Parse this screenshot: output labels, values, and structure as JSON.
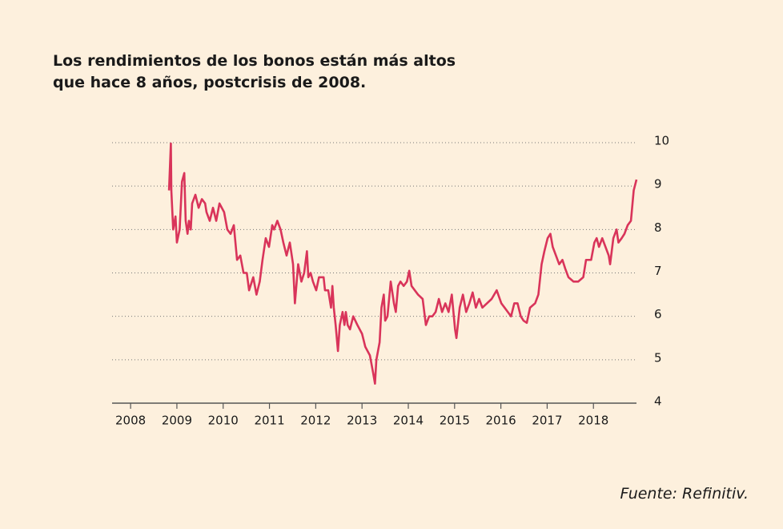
{
  "chart_data": {
    "type": "line",
    "title": [
      "Los rendimientos de los bonos están más altos",
      "que hace 8 años, postcrisis de 2008."
    ],
    "source": "Fuente: Refinitiv.",
    "color": "#d9345a",
    "grid": true,
    "x": [
      2008.83,
      2008.87,
      2008.88,
      2008.92,
      2008.97,
      2009.0,
      2009.06,
      2009.11,
      2009.16,
      2009.19,
      2009.23,
      2009.26,
      2009.3,
      2009.33,
      2009.4,
      2009.47,
      2009.54,
      2009.61,
      2009.64,
      2009.71,
      2009.78,
      2009.85,
      2009.92,
      2010.02,
      2010.09,
      2010.16,
      2010.23,
      2010.3,
      2010.37,
      2010.44,
      2010.51,
      2010.56,
      2010.65,
      2010.72,
      2010.79,
      2010.85,
      2010.92,
      2010.99,
      2011.06,
      2011.1,
      2011.17,
      2011.24,
      2011.3,
      2011.37,
      2011.44,
      2011.51,
      2011.55,
      2011.62,
      2011.69,
      2011.75,
      2011.81,
      2011.84,
      2011.89,
      2011.94,
      2012.01,
      2012.07,
      2012.17,
      2012.2,
      2012.27,
      2012.33,
      2012.36,
      2012.39,
      2012.43,
      2012.48,
      2012.52,
      2012.58,
      2012.62,
      2012.65,
      2012.69,
      2012.74,
      2012.81,
      2012.9,
      2013.0,
      2013.07,
      2013.17,
      2013.24,
      2013.28,
      2013.31,
      2013.38,
      2013.42,
      2013.47,
      2013.5,
      2013.55,
      2013.62,
      2013.69,
      2013.73,
      2013.78,
      2013.83,
      2013.9,
      2013.97,
      2014.02,
      2014.07,
      2014.14,
      2014.21,
      2014.31,
      2014.38,
      2014.45,
      2014.52,
      2014.59,
      2014.66,
      2014.73,
      2014.8,
      2014.87,
      2014.94,
      2015.01,
      2015.04,
      2015.11,
      2015.18,
      2015.25,
      2015.32,
      2015.39,
      2015.46,
      2015.53,
      2015.6,
      2015.7,
      2015.8,
      2015.91,
      2016.01,
      2016.08,
      2016.15,
      2016.22,
      2016.29,
      2016.36,
      2016.43,
      2016.49,
      2016.56,
      2016.63,
      2016.74,
      2016.81,
      2016.88,
      2016.94,
      2017.01,
      2017.07,
      2017.12,
      2017.19,
      2017.26,
      2017.33,
      2017.39,
      2017.46,
      2017.57,
      2017.67,
      2017.78,
      2017.84,
      2017.95,
      2018.02,
      2018.07,
      2018.12,
      2018.19,
      2018.26,
      2018.33,
      2018.36,
      2018.43,
      2018.5,
      2018.54,
      2018.61,
      2018.67,
      2018.74,
      2018.81,
      2018.87,
      2018.93
    ],
    "values": [
      8.9,
      9.98,
      8.9,
      8.0,
      8.3,
      7.7,
      8.0,
      9.1,
      9.3,
      8.2,
      7.9,
      8.2,
      8.0,
      8.6,
      8.8,
      8.5,
      8.7,
      8.6,
      8.4,
      8.2,
      8.5,
      8.2,
      8.6,
      8.4,
      8.0,
      7.9,
      8.1,
      7.3,
      7.4,
      7.0,
      7.0,
      6.6,
      6.9,
      6.5,
      6.8,
      7.3,
      7.8,
      7.6,
      8.1,
      8.0,
      8.2,
      8.0,
      7.7,
      7.4,
      7.7,
      7.2,
      6.3,
      7.2,
      6.8,
      7.0,
      7.5,
      6.9,
      7.0,
      6.8,
      6.6,
      6.9,
      6.9,
      6.6,
      6.6,
      6.2,
      6.7,
      6.2,
      5.8,
      5.2,
      5.8,
      6.1,
      5.8,
      6.1,
      5.8,
      5.7,
      6.0,
      5.8,
      5.6,
      5.3,
      5.1,
      4.7,
      4.45,
      5.0,
      5.4,
      6.2,
      6.5,
      5.9,
      6.0,
      6.8,
      6.3,
      6.1,
      6.7,
      6.8,
      6.7,
      6.8,
      7.05,
      6.7,
      6.6,
      6.5,
      6.4,
      5.8,
      6.0,
      6.0,
      6.1,
      6.4,
      6.1,
      6.3,
      6.1,
      6.5,
      5.7,
      5.5,
      6.2,
      6.5,
      6.1,
      6.3,
      6.55,
      6.2,
      6.4,
      6.2,
      6.3,
      6.4,
      6.6,
      6.3,
      6.2,
      6.1,
      6.0,
      6.3,
      6.3,
      6.0,
      5.9,
      5.85,
      6.2,
      6.3,
      6.5,
      7.2,
      7.5,
      7.8,
      7.9,
      7.6,
      7.4,
      7.2,
      7.3,
      7.1,
      6.9,
      6.8,
      6.8,
      6.9,
      7.3,
      7.3,
      7.7,
      7.8,
      7.6,
      7.8,
      7.6,
      7.4,
      7.2,
      7.8,
      8.0,
      7.7,
      7.8,
      7.9,
      8.1,
      8.2,
      8.9,
      9.15
    ],
    "xlim": [
      2007.6,
      2018.93
    ],
    "xticks": [
      2008,
      2009,
      2010,
      2011,
      2012,
      2013,
      2014,
      2015,
      2016,
      2017,
      2018
    ],
    "ylim": [
      4,
      10
    ],
    "yticks": [
      4,
      5,
      6,
      7,
      8,
      9,
      10
    ]
  }
}
